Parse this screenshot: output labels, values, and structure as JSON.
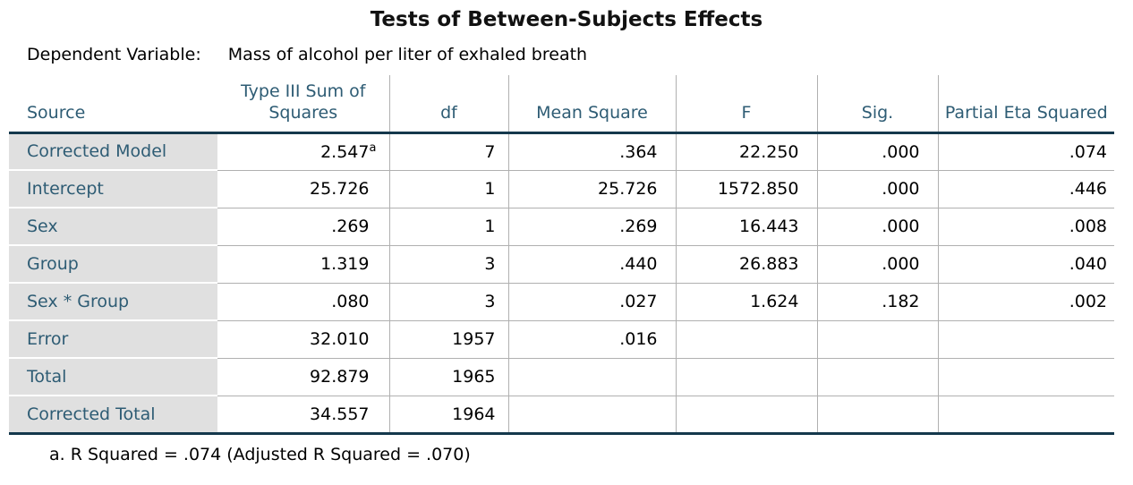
{
  "page": {
    "title": "Tests of Between-Subjects Effects",
    "dependent_variable_label": "Dependent Variable:",
    "dependent_variable_value": "Mass of alcohol per liter of exhaled breath",
    "footnote": "a. R Squared = .074 (Adjusted R Squared = .070)"
  },
  "colors": {
    "header_text": "#2e5c74",
    "dark_rule": "#14384c",
    "grid_line": "#b0b0b0",
    "row_label_bg": "#e0e0e0"
  },
  "table": {
    "columns": [
      {
        "key": "source",
        "label": "Source"
      },
      {
        "key": "ss",
        "label": "Type III Sum of Squares"
      },
      {
        "key": "df",
        "label": "df"
      },
      {
        "key": "ms",
        "label": "Mean Square"
      },
      {
        "key": "f",
        "label": "F"
      },
      {
        "key": "sig",
        "label": "Sig."
      },
      {
        "key": "pes",
        "label": "Partial Eta Squared"
      }
    ],
    "rows": [
      {
        "source": "Corrected Model",
        "ss": "2.547",
        "ss_sup": "a",
        "df": "7",
        "ms": ".364",
        "f": "22.250",
        "sig": ".000",
        "pes": ".074"
      },
      {
        "source": "Intercept",
        "ss": "25.726",
        "df": "1",
        "ms": "25.726",
        "f": "1572.850",
        "sig": ".000",
        "pes": ".446"
      },
      {
        "source": "Sex",
        "ss": ".269",
        "df": "1",
        "ms": ".269",
        "f": "16.443",
        "sig": ".000",
        "pes": ".008"
      },
      {
        "source": "Group",
        "ss": "1.319",
        "df": "3",
        "ms": ".440",
        "f": "26.883",
        "sig": ".000",
        "pes": ".040"
      },
      {
        "source": "Sex * Group",
        "ss": ".080",
        "df": "3",
        "ms": ".027",
        "f": "1.624",
        "sig": ".182",
        "pes": ".002"
      },
      {
        "source": "Error",
        "ss": "32.010",
        "df": "1957",
        "ms": ".016",
        "f": "",
        "sig": "",
        "pes": ""
      },
      {
        "source": "Total",
        "ss": "92.879",
        "df": "1965",
        "ms": "",
        "f": "",
        "sig": "",
        "pes": ""
      },
      {
        "source": "Corrected Total",
        "ss": "34.557",
        "df": "1964",
        "ms": "",
        "f": "",
        "sig": "",
        "pes": ""
      }
    ]
  }
}
